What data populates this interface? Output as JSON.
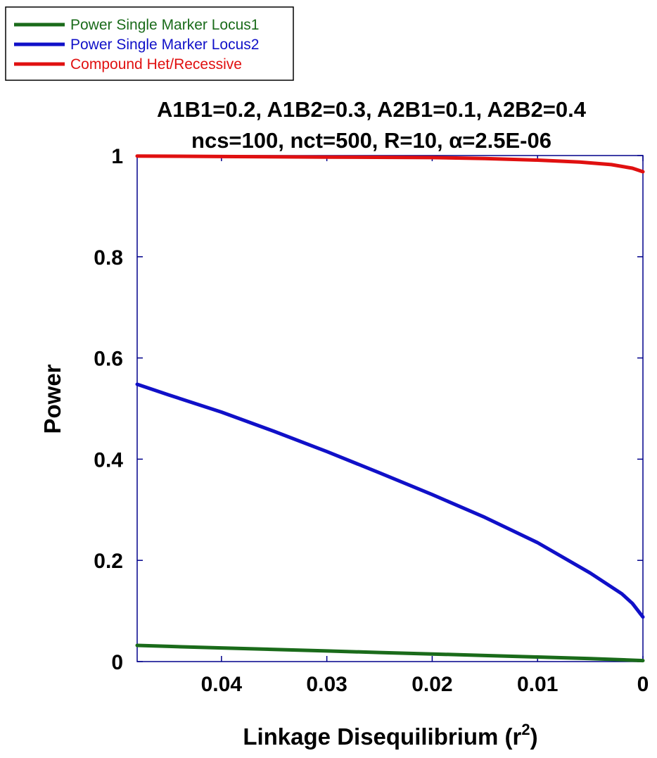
{
  "chart_data": {
    "type": "line",
    "title_lines": [
      "A1B1=0.2, A1B2=0.3, A2B1=0.1, A2B2=0.4",
      "ncs=100, nct=500, R=10, α=2.5E-06"
    ],
    "xlabel": {
      "main": "Linkage Disequilibrium (r",
      "sup": "2",
      "close": ")"
    },
    "ylabel": "Power",
    "xlim": [
      0.048,
      0
    ],
    "ylim": [
      0,
      1
    ],
    "x_reversed": true,
    "xticks": [
      0.04,
      0.03,
      0.02,
      0.01,
      0
    ],
    "xtick_labels": [
      "0.04",
      "0.03",
      "0.02",
      "0.01",
      "0"
    ],
    "yticks": [
      0,
      0.2,
      0.4,
      0.6,
      0.8,
      1
    ],
    "ytick_labels": [
      "0",
      "0.2",
      "0.4",
      "0.6",
      "0.8",
      "1"
    ],
    "grid": false,
    "legend_position": "top-left",
    "series": [
      {
        "name": "Power Single Marker Locus1",
        "color": "#1a6b1a",
        "x": [
          0.048,
          0.045,
          0.04,
          0.035,
          0.03,
          0.025,
          0.02,
          0.015,
          0.01,
          0.005,
          0
        ],
        "y": [
          0.032,
          0.03,
          0.027,
          0.024,
          0.021,
          0.018,
          0.015,
          0.012,
          0.009,
          0.006,
          0.002
        ]
      },
      {
        "name": "Power Single Marker Locus2",
        "color": "#1010c8",
        "x": [
          0.048,
          0.045,
          0.04,
          0.035,
          0.03,
          0.025,
          0.02,
          0.015,
          0.01,
          0.005,
          0.002,
          0.001,
          0
        ],
        "y": [
          0.548,
          0.527,
          0.493,
          0.455,
          0.415,
          0.373,
          0.33,
          0.285,
          0.235,
          0.175,
          0.134,
          0.115,
          0.088
        ]
      },
      {
        "name": "Compound Het/Recessive",
        "color": "#e01010",
        "x": [
          0.048,
          0.04,
          0.03,
          0.02,
          0.015,
          0.01,
          0.006,
          0.003,
          0.001,
          0
        ],
        "y": [
          0.999,
          0.998,
          0.997,
          0.996,
          0.994,
          0.991,
          0.987,
          0.982,
          0.975,
          0.968
        ]
      }
    ]
  }
}
